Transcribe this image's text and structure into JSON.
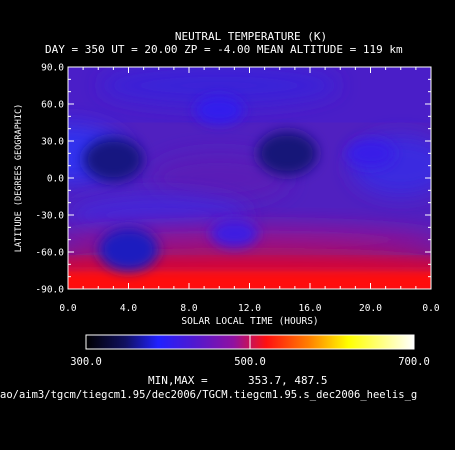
{
  "chart_data": {
    "type": "heatmap",
    "title": "NEUTRAL TEMPERATURE (K)",
    "subtitle": "DAY = 350   UT = 20.00   ZP =   -4.00   MEAN ALTITUDE = 119 km",
    "xlabel": "SOLAR LOCAL TIME (HOURS)",
    "ylabel": "LATITUDE (DEGREES GEOGRAPHIC)",
    "xlim": [
      0.0,
      24.0
    ],
    "ylim": [
      -90.0,
      90.0
    ],
    "x_ticks": [
      "0.0",
      "4.0",
      "8.0",
      "12.0",
      "16.0",
      "20.0",
      "0.0"
    ],
    "x_tick_values": [
      0,
      4,
      8,
      12,
      16,
      20,
      24
    ],
    "y_ticks": [
      "90.0",
      "60.0",
      "30.0",
      "0.0",
      "-30.0",
      "-60.0",
      "-90.0"
    ],
    "y_tick_values": [
      90,
      60,
      30,
      0,
      -30,
      -60,
      -90
    ],
    "grid": false,
    "colorbar": {
      "min": 300.0,
      "max": 700.0,
      "ticks": [
        "300.0",
        "500.0",
        "700.0"
      ],
      "tick_values": [
        300,
        500,
        700
      ],
      "colors": [
        "#000000",
        "#2020ff",
        "#6010c0",
        "#ff0000",
        "#ff8000",
        "#ffff00",
        "#ffffff"
      ]
    },
    "min_value": 353.7,
    "max_value": 487.5,
    "minmax_label": "MIN,MAX =",
    "minmax_text": "353.7,   487.5",
    "path": "ao/aim3/tgcm/tiegcm1.95/dec2006/TGCM.tiegcm1.95.s_dec2006_heelis_g",
    "features": [
      {
        "type": "cool-center",
        "local_time": 3.0,
        "latitude": 15,
        "value": 356
      },
      {
        "type": "cool-center",
        "local_time": 14.5,
        "latitude": 20,
        "value": 354
      },
      {
        "type": "warm-center",
        "local_time": 10.0,
        "latitude": 55,
        "value": 405
      },
      {
        "type": "warm-center",
        "local_time": 20.0,
        "latitude": 20,
        "value": 410
      },
      {
        "type": "warm-center",
        "local_time": 11.0,
        "latitude": -45,
        "value": 415
      },
      {
        "type": "cool-center",
        "local_time": 4.0,
        "latitude": -58,
        "value": 372
      }
    ]
  }
}
